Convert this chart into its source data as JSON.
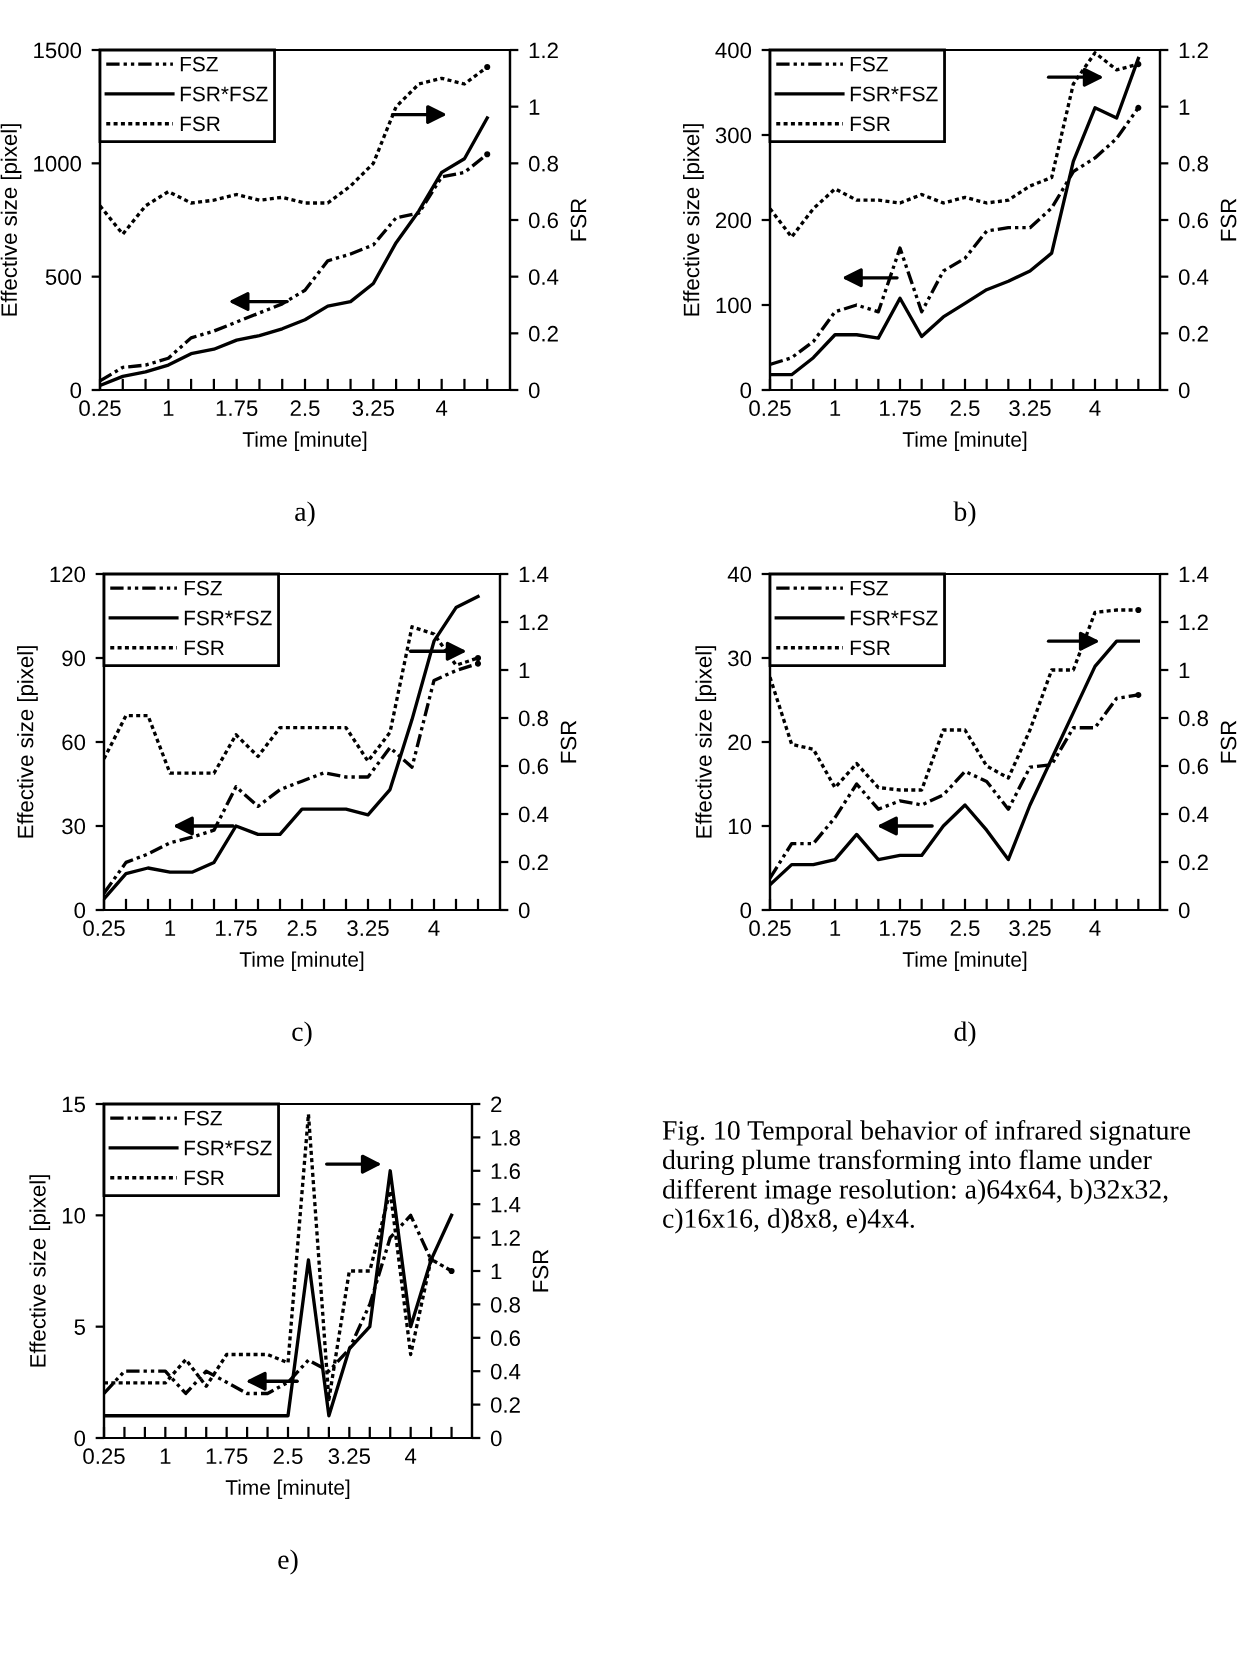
{
  "chart_data": [
    {
      "type": "line",
      "xlabel": "Time [minute]",
      "ylabel": "Effective size [pixel]",
      "y2label": "FSR",
      "legend": "top left",
      "annotations": [
        "a)"
      ],
      "x": [
        0.25,
        0.5,
        0.75,
        1,
        1.25,
        1.5,
        1.75,
        2,
        2.25,
        2.5,
        2.75,
        3,
        3.25,
        3.5,
        3.75,
        4,
        4.25,
        4.5
      ],
      "xlim": [
        0.25,
        4.75
      ],
      "xticks": [
        0.25,
        {
          "value": 0.5,
          "label": null
        },
        {
          "value": 0.75,
          "label": null
        },
        1,
        {
          "value": 1.25,
          "label": null
        },
        {
          "value": 1.5,
          "label": null
        },
        1.75,
        {
          "value": 2,
          "label": null
        },
        {
          "value": 2.25,
          "label": null
        },
        2.5,
        {
          "value": 2.75,
          "label": null
        },
        {
          "value": 3,
          "label": null
        },
        3.25,
        {
          "value": 3.5,
          "label": null
        },
        {
          "value": 3.75,
          "label": null
        },
        4,
        {
          "value": 4.25,
          "label": null
        },
        {
          "value": 4.5,
          "label": null
        }
      ],
      "ylim": [
        0,
        1500
      ],
      "yticks": [
        0,
        500,
        1000,
        1500
      ],
      "y2lim": [
        0,
        1.2
      ],
      "y2ticks": [
        0,
        0.2,
        0.4,
        0.6,
        0.8,
        1,
        1.2
      ],
      "series": [
        {
          "name": "FSZ",
          "type": "line",
          "color": "#000000",
          "line_style": "dashed",
          "values": [
            40,
            100,
            110,
            140,
            230,
            260,
            300,
            340,
            380,
            440,
            570,
            600,
            640,
            760,
            780,
            940,
            960,
            1040
          ]
        },
        {
          "name": "FSR*FSZ",
          "type": "line",
          "color": "#000000",
          "line_style": "solid",
          "values": [
            20,
            60,
            80,
            110,
            160,
            180,
            220,
            240,
            270,
            310,
            370,
            390,
            470,
            650,
            790,
            960,
            1020,
            1200
          ]
        },
        {
          "name": "FSR",
          "type": "line",
          "color": "#000000",
          "line_style": "dotted",
          "axis": "y2",
          "values": [
            0.65,
            0.55,
            0.65,
            0.7,
            0.66,
            0.67,
            0.69,
            0.67,
            0.68,
            0.66,
            0.66,
            0.72,
            0.8,
            1.0,
            1.08,
            1.1,
            1.08,
            1.14
          ]
        }
      ]
    },
    {
      "type": "line",
      "xlabel": "Time [minute]",
      "ylabel": "Effective size [pixel]",
      "y2label": "FSR",
      "legend": "top left",
      "annotations": [
        "b)"
      ],
      "x": [
        0.25,
        0.5,
        0.75,
        1,
        1.25,
        1.5,
        1.75,
        2,
        2.25,
        2.5,
        2.75,
        3,
        3.25,
        3.5,
        3.75,
        4,
        4.25,
        4.5
      ],
      "xlim": [
        0.25,
        4.75
      ],
      "xticks": [
        0.25,
        {
          "value": 0.5,
          "label": null
        },
        {
          "value": 0.75,
          "label": null
        },
        1,
        {
          "value": 1.25,
          "label": null
        },
        {
          "value": 1.5,
          "label": null
        },
        1.75,
        {
          "value": 2,
          "label": null
        },
        {
          "value": 2.25,
          "label": null
        },
        2.5,
        {
          "value": 2.75,
          "label": null
        },
        {
          "value": 3,
          "label": null
        },
        3.25,
        {
          "value": 3.5,
          "label": null
        },
        {
          "value": 3.75,
          "label": null
        },
        4,
        {
          "value": 4.25,
          "label": null
        },
        {
          "value": 4.5,
          "label": null
        }
      ],
      "ylim": [
        0,
        400
      ],
      "yticks": [
        0,
        100,
        200,
        300,
        400
      ],
      "y2lim": [
        0,
        1.2
      ],
      "y2ticks": [
        0,
        0.2,
        0.4,
        0.6,
        0.8,
        1,
        1.2
      ],
      "series": [
        {
          "name": "FSZ",
          "type": "line",
          "color": "#000000",
          "line_style": "dashed",
          "values": [
            30,
            38,
            57,
            92,
            100,
            92,
            167,
            92,
            140,
            155,
            187,
            191,
            191,
            214,
            257,
            273,
            296,
            332
          ]
        },
        {
          "name": "FSR*FSZ",
          "type": "line",
          "color": "#000000",
          "line_style": "solid",
          "values": [
            18,
            18,
            38,
            65,
            65,
            61,
            108,
            63,
            86,
            102,
            118,
            128,
            140,
            161,
            269,
            332,
            320,
            390
          ]
        },
        {
          "name": "FSR",
          "type": "line",
          "color": "#000000",
          "line_style": "dotted",
          "axis": "y2",
          "values": [
            0.64,
            0.54,
            0.64,
            0.71,
            0.67,
            0.67,
            0.66,
            0.69,
            0.66,
            0.68,
            0.66,
            0.67,
            0.72,
            0.75,
            1.08,
            1.19,
            1.13,
            1.15
          ]
        }
      ]
    },
    {
      "type": "line",
      "xlabel": "Time [minute]",
      "ylabel": "Effective size [pixel]",
      "y2label": "FSR",
      "legend": "top left",
      "annotations": [
        "c)"
      ],
      "x": [
        0.25,
        0.5,
        0.75,
        1,
        1.25,
        1.5,
        1.75,
        2,
        2.25,
        2.5,
        2.75,
        3,
        3.25,
        3.5,
        3.75,
        4,
        4.25,
        4.5
      ],
      "xlim": [
        0.25,
        4.75
      ],
      "xticks": [
        0.25,
        {
          "value": 0.5,
          "label": null
        },
        {
          "value": 0.75,
          "label": null
        },
        1,
        {
          "value": 1.25,
          "label": null
        },
        {
          "value": 1.5,
          "label": null
        },
        1.75,
        {
          "value": 2,
          "label": null
        },
        {
          "value": 2.25,
          "label": null
        },
        2.5,
        {
          "value": 2.75,
          "label": null
        },
        {
          "value": 3,
          "label": null
        },
        3.25,
        {
          "value": 3.5,
          "label": null
        },
        {
          "value": 3.75,
          "label": null
        },
        4,
        {
          "value": 4.25,
          "label": null
        },
        {
          "value": 4.5,
          "label": null
        }
      ],
      "ylim": [
        0,
        120
      ],
      "yticks": [
        0,
        30,
        60,
        90,
        120
      ],
      "y2lim": [
        0,
        1.4
      ],
      "y2ticks": [
        0,
        0.2,
        0.4,
        0.6,
        0.8,
        1,
        1.2,
        1.4
      ],
      "series": [
        {
          "name": "FSZ",
          "type": "line",
          "color": "#000000",
          "line_style": "dashed",
          "values": [
            6,
            17,
            20,
            24,
            26,
            28.5,
            44,
            37,
            43,
            46,
            49,
            47.5,
            47.5,
            58,
            51,
            82,
            85.5,
            88
          ]
        },
        {
          "name": "FSR*FSZ",
          "type": "line",
          "color": "#000000",
          "line_style": "solid",
          "values": [
            4,
            13,
            15,
            13.5,
            13.5,
            17,
            30,
            27,
            27,
            36,
            36,
            36,
            34,
            43,
            68,
            96,
            108,
            112
          ]
        },
        {
          "name": "FSR",
          "type": "line",
          "color": "#000000",
          "line_style": "dotted",
          "axis": "y2",
          "values": [
            0.63,
            0.81,
            0.81,
            0.57,
            0.57,
            0.57,
            0.73,
            0.64,
            0.76,
            0.76,
            0.76,
            0.76,
            0.62,
            0.74,
            1.18,
            1.15,
            1.02,
            1.05
          ]
        }
      ]
    },
    {
      "type": "line",
      "xlabel": "Time [minute]",
      "ylabel": "Effective size [pixel]",
      "y2label": "FSR",
      "legend": "top left",
      "annotations": [
        "d)"
      ],
      "x": [
        0.25,
        0.5,
        0.75,
        1,
        1.25,
        1.5,
        1.75,
        2,
        2.25,
        2.5,
        2.75,
        3,
        3.25,
        3.5,
        3.75,
        4,
        4.25,
        4.5
      ],
      "xlim": [
        0.25,
        4.75
      ],
      "xticks": [
        0.25,
        {
          "value": 0.5,
          "label": null
        },
        {
          "value": 0.75,
          "label": null
        },
        1,
        {
          "value": 1.25,
          "label": null
        },
        {
          "value": 1.5,
          "label": null
        },
        1.75,
        {
          "value": 2,
          "label": null
        },
        {
          "value": 2.25,
          "label": null
        },
        2.5,
        {
          "value": 2.75,
          "label": null
        },
        {
          "value": 3,
          "label": null
        },
        3.25,
        {
          "value": 3.5,
          "label": null
        },
        {
          "value": 3.75,
          "label": null
        },
        4,
        {
          "value": 4.25,
          "label": null
        },
        {
          "value": 4.5,
          "label": null
        }
      ],
      "ylim": [
        0,
        40
      ],
      "yticks": [
        0,
        10,
        20,
        30,
        40
      ],
      "y2lim": [
        0,
        1.4
      ],
      "y2ticks": [
        0,
        0.2,
        0.4,
        0.6,
        0.8,
        1,
        1.2,
        1.4
      ],
      "series": [
        {
          "name": "FSZ",
          "type": "line",
          "color": "#000000",
          "line_style": "dashed",
          "values": [
            3.8,
            7.9,
            7.9,
            11,
            15,
            12,
            13,
            12.5,
            13.7,
            16.5,
            15.3,
            12,
            17,
            17.3,
            21.7,
            21.7,
            25.2,
            25.6
          ]
        },
        {
          "name": "FSR*FSZ",
          "type": "line",
          "color": "#000000",
          "line_style": "solid",
          "values": [
            3,
            5.4,
            5.4,
            6,
            9,
            6,
            6.5,
            6.5,
            10,
            12.5,
            9.5,
            6,
            12.5,
            18,
            23.5,
            29,
            32,
            32
          ]
        },
        {
          "name": "FSR",
          "type": "line",
          "color": "#000000",
          "line_style": "dotted",
          "axis": "y2",
          "values": [
            0.97,
            0.69,
            0.67,
            0.51,
            0.61,
            0.51,
            0.5,
            0.5,
            0.75,
            0.75,
            0.6,
            0.55,
            0.75,
            1.0,
            1.0,
            1.24,
            1.25,
            1.25
          ]
        }
      ]
    },
    {
      "type": "line",
      "xlabel": "Time [minute]",
      "ylabel": "Effective size [pixel]",
      "y2label": "FSR",
      "legend": "top left",
      "annotations": [
        "e)",
        "Fig. 10 Temporal behavior of infrared signature during plume transforming into flame under different image resolution: a)64x64, b)32x32, c)16x16, d)8x8, e)4x4."
      ],
      "x": [
        0.25,
        0.5,
        0.75,
        1,
        1.25,
        1.5,
        1.75,
        2,
        2.25,
        2.5,
        2.75,
        3,
        3.25,
        3.5,
        3.75,
        4,
        4.25,
        4.5
      ],
      "xlim": [
        0.25,
        4.75
      ],
      "xticks": [
        0.25,
        {
          "value": 0.5,
          "label": null
        },
        {
          "value": 0.75,
          "label": null
        },
        1,
        {
          "value": 1.25,
          "label": null
        },
        {
          "value": 1.5,
          "label": null
        },
        1.75,
        {
          "value": 2,
          "label": null
        },
        {
          "value": 2.25,
          "label": null
        },
        2.5,
        {
          "value": 2.75,
          "label": null
        },
        {
          "value": 3,
          "label": null
        },
        3.25,
        {
          "value": 3.5,
          "label": null
        },
        {
          "value": 3.75,
          "label": null
        },
        4,
        {
          "value": 4.25,
          "label": null
        },
        {
          "value": 4.5,
          "label": null
        }
      ],
      "ylim": [
        0,
        15
      ],
      "yticks": [
        0,
        5,
        10,
        15
      ],
      "y2lim": [
        0,
        2
      ],
      "y2ticks": [
        0,
        0.2,
        0.4,
        0.6,
        0.8,
        1,
        1.2,
        1.4,
        1.6,
        1.8,
        2
      ],
      "series": [
        {
          "name": "FSZ",
          "type": "line",
          "color": "#000000",
          "line_style": "dashed",
          "values": [
            2,
            3,
            3,
            3,
            2,
            3,
            2.5,
            2,
            2,
            2.5,
            3.5,
            3,
            4,
            6,
            9,
            10,
            8,
            null
          ]
        },
        {
          "name": "FSR*FSZ",
          "type": "line",
          "color": "#000000",
          "line_style": "solid",
          "values": [
            1,
            1,
            1,
            1,
            1,
            1,
            1,
            1,
            1,
            1,
            8,
            1,
            4,
            5,
            12,
            5,
            8,
            10
          ]
        },
        {
          "name": "FSR",
          "type": "line",
          "color": "#000000",
          "line_style": "dotted",
          "axis": "y2",
          "values": [
            0.33,
            0.33,
            0.33,
            0.33,
            0.47,
            0.31,
            0.5,
            0.5,
            0.5,
            0.45,
            1.94,
            0.23,
            1.0,
            1.0,
            1.48,
            0.5,
            1.07,
            1.0
          ]
        }
      ]
    }
  ]
}
